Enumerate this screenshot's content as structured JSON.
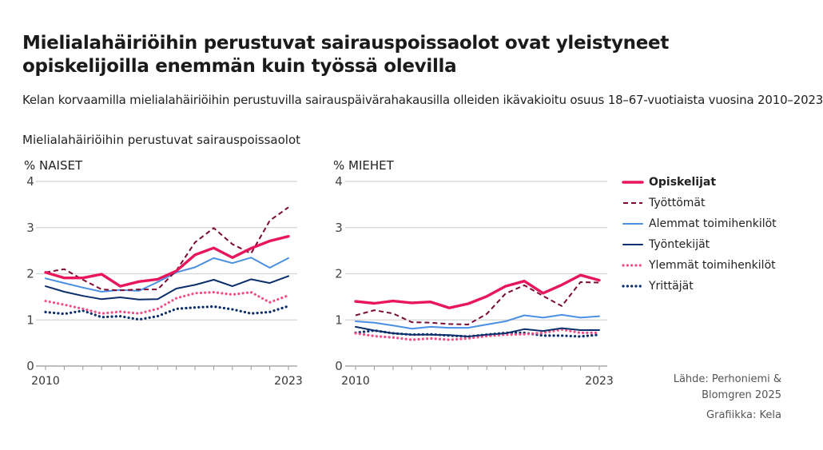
{
  "title": "Mielialahäiriöihin perustuvat sairauspoissaolot ovat yleistyneet opiskelijoilla enemmän kuin työssä olevilla",
  "subtitle": "Kelan korvaamilla mielialahäiriöihin perustuvilla sairauspäivärahakausilla olleiden ikävakioitu osuus 18–67-vuotiaista vuosina 2010–2023",
  "chart_title": "Mielialahäiriöihin perustuvat sairauspoissaolot",
  "source": [
    "Lähde: Perhoniemi &",
    "Blomgren 2025"
  ],
  "credit": "Grafiikka: Kela",
  "chart_data": [
    {
      "type": "line",
      "panel": "NAISET",
      "ylabel": "%",
      "ylim": [
        0,
        4
      ],
      "yticks": [
        0,
        1,
        2,
        3,
        4
      ],
      "x": [
        2010,
        2011,
        2012,
        2013,
        2014,
        2015,
        2016,
        2017,
        2018,
        2019,
        2020,
        2021,
        2022,
        2023
      ],
      "xtick_labels": [
        "2010",
        "2023"
      ],
      "grid": true,
      "series": [
        {
          "name": "Opiskelijat",
          "color": "#e8175d",
          "style": "solid-bold",
          "values": [
            2.03,
            1.91,
            1.91,
            1.99,
            1.73,
            1.83,
            1.88,
            2.06,
            2.41,
            2.56,
            2.35,
            2.55,
            2.71,
            2.81
          ]
        },
        {
          "name": "Työttömät",
          "color": "#7a0a34",
          "style": "dashed",
          "values": [
            2.03,
            2.1,
            1.87,
            1.66,
            1.64,
            1.66,
            1.66,
            2.07,
            2.68,
            2.99,
            2.64,
            2.44,
            3.15,
            3.44
          ]
        },
        {
          "name": "Alemmat toimihenkilöt",
          "color": "#4a90e2",
          "style": "solid",
          "values": [
            1.9,
            1.8,
            1.7,
            1.61,
            1.65,
            1.63,
            1.82,
            2.03,
            2.14,
            2.34,
            2.23,
            2.35,
            2.13,
            2.34
          ]
        },
        {
          "name": "Työntekijät",
          "color": "#0a2f6b",
          "style": "solid",
          "values": [
            1.73,
            1.61,
            1.52,
            1.45,
            1.49,
            1.44,
            1.45,
            1.68,
            1.76,
            1.87,
            1.73,
            1.88,
            1.8,
            1.95
          ]
        },
        {
          "name": "Ylemmät toimihenkilöt",
          "color": "#f0508a",
          "style": "dotted",
          "values": [
            1.41,
            1.33,
            1.24,
            1.14,
            1.18,
            1.14,
            1.24,
            1.47,
            1.58,
            1.6,
            1.55,
            1.6,
            1.38,
            1.53
          ]
        },
        {
          "name": "Yrittäjät",
          "color": "#0a2f6b",
          "style": "dotted",
          "values": [
            1.17,
            1.13,
            1.2,
            1.06,
            1.08,
            1.01,
            1.08,
            1.24,
            1.27,
            1.29,
            1.23,
            1.14,
            1.17,
            1.3
          ]
        }
      ]
    },
    {
      "type": "line",
      "panel": "MIEHET",
      "ylabel": "%",
      "ylim": [
        0,
        4
      ],
      "yticks": [
        0,
        1,
        2,
        3,
        4
      ],
      "x": [
        2010,
        2011,
        2012,
        2013,
        2014,
        2015,
        2016,
        2017,
        2018,
        2019,
        2020,
        2021,
        2022,
        2023
      ],
      "xtick_labels": [
        "2010",
        "2023"
      ],
      "grid": true,
      "series": [
        {
          "name": "Opiskelijat",
          "color": "#e8175d",
          "style": "solid-bold",
          "values": [
            1.4,
            1.36,
            1.41,
            1.37,
            1.39,
            1.26,
            1.35,
            1.51,
            1.73,
            1.84,
            1.58,
            1.76,
            1.97,
            1.86
          ]
        },
        {
          "name": "Työttömät",
          "color": "#7a0a34",
          "style": "dashed",
          "values": [
            1.1,
            1.21,
            1.14,
            0.95,
            0.94,
            0.91,
            0.9,
            1.13,
            1.57,
            1.75,
            1.52,
            1.3,
            1.82,
            1.81
          ]
        },
        {
          "name": "Alemmat toimihenkilöt",
          "color": "#4a90e2",
          "style": "solid",
          "values": [
            0.97,
            0.94,
            0.88,
            0.81,
            0.85,
            0.83,
            0.83,
            0.9,
            0.97,
            1.1,
            1.05,
            1.11,
            1.05,
            1.08
          ]
        },
        {
          "name": "Työntekijät",
          "color": "#0a2f6b",
          "style": "solid",
          "values": [
            0.85,
            0.77,
            0.71,
            0.68,
            0.68,
            0.67,
            0.64,
            0.68,
            0.71,
            0.8,
            0.76,
            0.82,
            0.78,
            0.78
          ]
        },
        {
          "name": "Ylemmät toimihenkilöt",
          "color": "#f0508a",
          "style": "dotted",
          "values": [
            0.71,
            0.65,
            0.62,
            0.57,
            0.6,
            0.57,
            0.6,
            0.65,
            0.68,
            0.69,
            0.72,
            0.79,
            0.72,
            0.72
          ]
        },
        {
          "name": "Yrittäjät",
          "color": "#0a2f6b",
          "style": "dotted",
          "values": [
            0.72,
            0.77,
            0.71,
            0.68,
            0.69,
            0.66,
            0.64,
            0.68,
            0.72,
            0.72,
            0.66,
            0.66,
            0.64,
            0.68
          ]
        }
      ]
    }
  ],
  "legend": [
    "Opiskelijat",
    "Työttömät",
    "Alemmat toimihenkilöt",
    "Työntekijät",
    "Ylemmät toimihenkilöt",
    "Yrittäjät"
  ]
}
